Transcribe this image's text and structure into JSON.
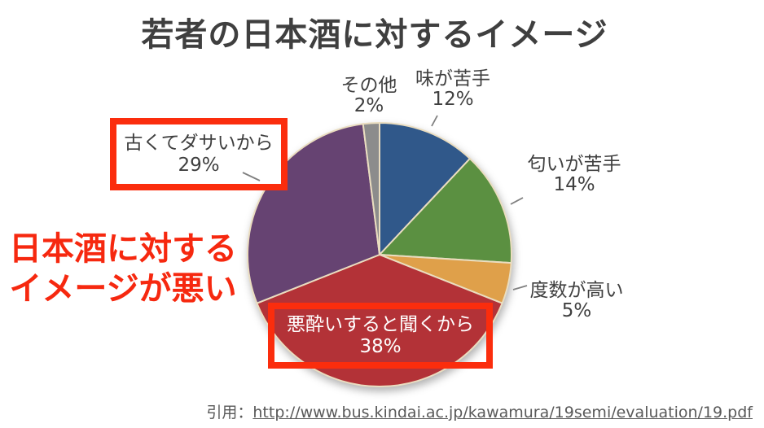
{
  "title": "若者の日本酒に対するイメージ",
  "chart_data": {
    "type": "pie",
    "title": "若者の日本酒に対するイメージ",
    "start_angle_deg": 0,
    "direction": "clockwise",
    "unit": "%",
    "slices": [
      {
        "label": "味が苦手",
        "value": 12,
        "color": "#30588A",
        "highlighted": false
      },
      {
        "label": "匂いが苦手",
        "value": 14,
        "color": "#5B9041",
        "highlighted": false
      },
      {
        "label": "度数が高い",
        "value": 5,
        "color": "#DFA04A",
        "highlighted": false
      },
      {
        "label": "悪酔いすると聞くから",
        "value": 38,
        "color": "#B33237",
        "highlighted": true
      },
      {
        "label": "古くてダサいから",
        "value": 29,
        "color": "#664372",
        "highlighted": true
      },
      {
        "label": "その他",
        "value": 2,
        "color": "#8C8C8C",
        "highlighted": false
      }
    ]
  },
  "labels": {
    "other": {
      "name": "その他",
      "pct": "2%"
    },
    "taste": {
      "name": "味が苦手",
      "pct": "12%"
    },
    "smell": {
      "name": "匂いが苦手",
      "pct": "14%"
    },
    "alcohol": {
      "name": "度数が高い",
      "pct": "5%"
    },
    "hangover": {
      "name": "悪酔いすると聞くから",
      "pct": "38%"
    },
    "oldfashioned": {
      "name": "古くてダサいから",
      "pct": "29%"
    }
  },
  "annotation": {
    "line1": "日本酒に対する",
    "line2": "イメージが悪い",
    "color": "#F6280F"
  },
  "citation": {
    "prefix": "引用：",
    "url": "http://www.bus.kindai.ac.jp/kawamura/19semi/evaluation/19.pdf"
  },
  "colors": {
    "slice_stroke": "#EADDC0",
    "highlight_border": "#FB2D0D",
    "annotation_red": "#F6280F",
    "title_gray": "#3F3F3F",
    "label_gray": "#3F3F3F",
    "citation_gray": "#595959",
    "leader_line_gray": "#7F7F7F"
  }
}
